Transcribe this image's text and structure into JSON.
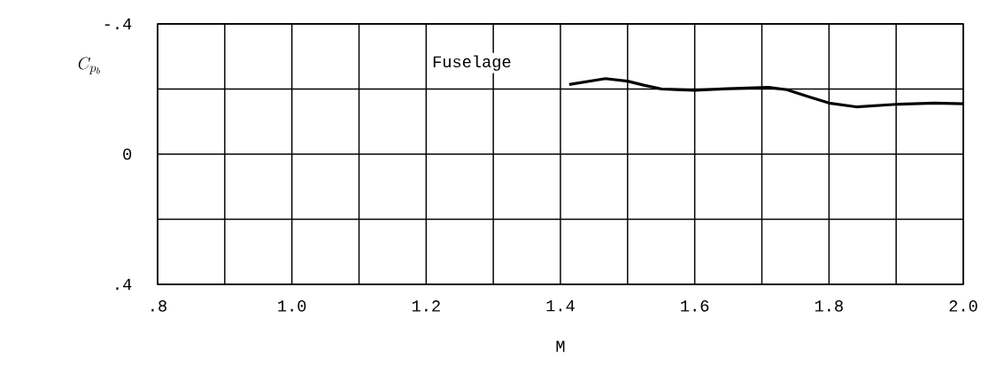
{
  "chart_data": {
    "type": "line",
    "xlabel": "M",
    "ylabel": "C_{p_b}",
    "annotations": [
      "Fuselage"
    ],
    "x": [
      1.413,
      1.467,
      1.5,
      1.524,
      1.551,
      1.6,
      1.649,
      1.71,
      1.737,
      1.772,
      1.8,
      1.842,
      1.9,
      1.957,
      2.0
    ],
    "series": [
      {
        "color": "#000000",
        "values": [
          -0.214,
          -0.232,
          -0.224,
          -0.212,
          -0.2,
          -0.196,
          -0.201,
          -0.205,
          -0.198,
          -0.175,
          -0.157,
          -0.145,
          -0.153,
          -0.157,
          -0.155
        ]
      }
    ],
    "xlim": [
      0.8,
      2.0
    ],
    "ylim": [
      0.4,
      -0.4
    ],
    "xticks": [
      {
        "value": 0.8,
        "label": ".8"
      },
      {
        "value": 0.9,
        "label": null
      },
      {
        "value": 1.0,
        "label": "1.0"
      },
      {
        "value": 1.1,
        "label": null
      },
      {
        "value": 1.2,
        "label": "1.2"
      },
      {
        "value": 1.3,
        "label": null
      },
      {
        "value": 1.4,
        "label": "1.4"
      },
      {
        "value": 1.5,
        "label": null
      },
      {
        "value": 1.6,
        "label": "1.6"
      },
      {
        "value": 1.7,
        "label": null
      },
      {
        "value": 1.8,
        "label": "1.8"
      },
      {
        "value": 1.9,
        "label": null
      },
      {
        "value": 2.0,
        "label": "2.0"
      }
    ],
    "yticks": [
      {
        "value": -0.4,
        "label": "-.4"
      },
      {
        "value": -0.2,
        "label": null
      },
      {
        "value": 0,
        "label": "0"
      },
      {
        "value": 0.2,
        "label": null
      },
      {
        "value": 0.4,
        "label": ".4"
      }
    ],
    "grid": true,
    "marker": "none",
    "line_style": "solid"
  }
}
